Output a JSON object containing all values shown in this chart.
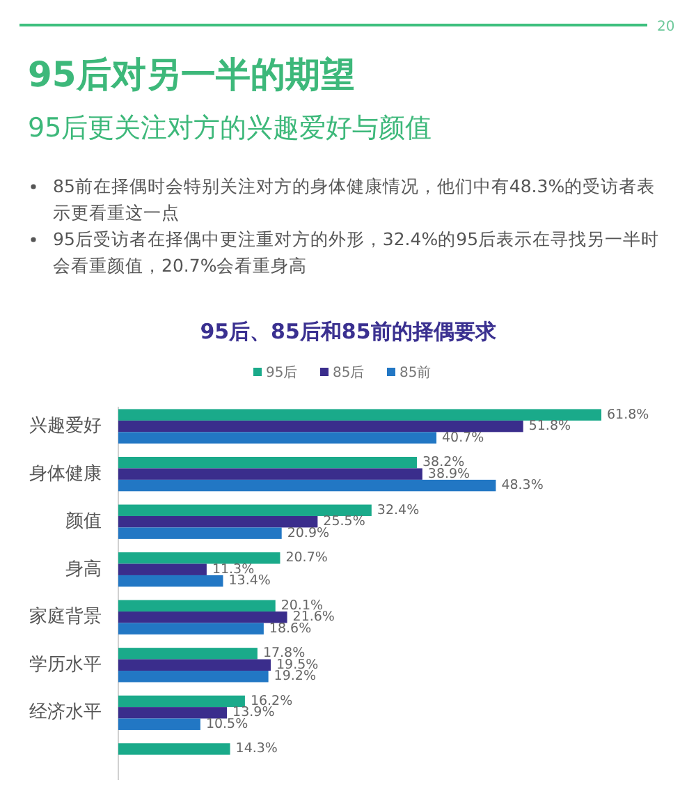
{
  "chart_data": {
    "type": "bar",
    "orientation": "horizontal",
    "title": "95后、85后和85前的择偶要求",
    "annotations": [
      "20",
      "95后对另一半的期望",
      "95后更关注对方的兴趣爱好与颜值",
      "85前在择偶时会特别关注对方的身体健康情况，他们中有48.3%的受访者表示更看重这一点",
      "95后受访者在择偶中更注重对方的外形，32.4%的95后表示在寻找另一半时会看重颜值，20.7%会看重身高"
    ],
    "categories": [
      "兴趣爱好",
      "身体健康",
      "颜值",
      "身高",
      "家庭背景",
      "学历水平",
      "经济水平",
      null
    ],
    "legend": "top",
    "grid": false,
    "series": [
      {
        "name": "95后",
        "color": "#1aaa8a",
        "values": [
          61.8,
          38.2,
          32.4,
          20.7,
          20.1,
          17.8,
          16.2,
          14.3
        ],
        "value_labels": [
          "61.8%",
          "38.2%",
          "32.4%",
          "20.7%",
          "20.1%",
          "17.8%",
          "16.2%",
          "14.3%"
        ]
      },
      {
        "name": "85后",
        "color": "#3a2d8c",
        "values": [
          51.8,
          38.9,
          25.5,
          11.3,
          21.6,
          19.5,
          13.9,
          null
        ],
        "value_labels": [
          "51.8%",
          "38.9%",
          "25.5%",
          "11.3%",
          "21.6%",
          "19.5%",
          "13.9%",
          null
        ]
      },
      {
        "name": "85前",
        "color": "#2277c4",
        "values": [
          40.7,
          48.3,
          20.9,
          13.4,
          18.6,
          19.2,
          10.5,
          null
        ],
        "value_labels": [
          "40.7%",
          "48.3%",
          "20.9%",
          "13.4%",
          "18.6%",
          "19.2%",
          "10.5%",
          null
        ]
      }
    ]
  }
}
